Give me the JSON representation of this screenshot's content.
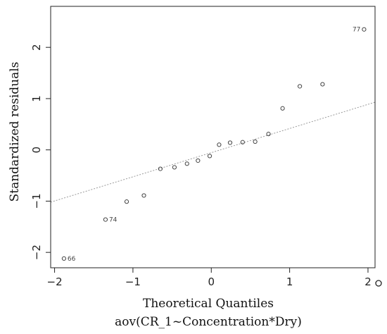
{
  "chart_data": {
    "type": "scatter",
    "title": "",
    "xlabel": "Theoretical Quantiles",
    "subtitle": "aov(CR_1~Concentration*Dry)",
    "ylabel": "Standardized residuals",
    "xlim": [
      -2.05,
      2.09
    ],
    "ylim": [
      -2.3,
      2.8
    ],
    "grid": false,
    "x_ticks": [
      "-2",
      "-1",
      "0",
      "1",
      "2"
    ],
    "y_ticks": [
      "-2",
      "-1",
      "0",
      "1",
      "2"
    ],
    "points": [
      {
        "x": -1.88,
        "y": -2.12,
        "label": "66"
      },
      {
        "x": -1.35,
        "y": -1.36,
        "label": "74"
      },
      {
        "x": -1.08,
        "y": -1.01,
        "label": ""
      },
      {
        "x": -0.86,
        "y": -0.89,
        "label": ""
      },
      {
        "x": -0.65,
        "y": -0.37,
        "label": ""
      },
      {
        "x": -0.47,
        "y": -0.34,
        "label": ""
      },
      {
        "x": -0.31,
        "y": -0.27,
        "label": ""
      },
      {
        "x": -0.17,
        "y": -0.21,
        "label": ""
      },
      {
        "x": -0.02,
        "y": -0.12,
        "label": ""
      },
      {
        "x": 0.1,
        "y": 0.1,
        "label": ""
      },
      {
        "x": 0.24,
        "y": 0.14,
        "label": ""
      },
      {
        "x": 0.4,
        "y": 0.15,
        "label": ""
      },
      {
        "x": 0.56,
        "y": 0.16,
        "label": ""
      },
      {
        "x": 0.73,
        "y": 0.31,
        "label": ""
      },
      {
        "x": 0.91,
        "y": 0.81,
        "label": ""
      },
      {
        "x": 1.13,
        "y": 1.24,
        "label": ""
      },
      {
        "x": 1.42,
        "y": 1.28,
        "label": ""
      },
      {
        "x": 1.95,
        "y": 2.35,
        "label": "77"
      }
    ],
    "reference_line": {
      "style": "dotted",
      "from": [
        -2.05,
        -1.02
      ],
      "to": [
        2.09,
        0.93
      ]
    }
  }
}
